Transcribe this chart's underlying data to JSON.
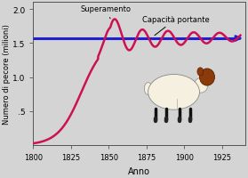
{
  "xlabel": "Anno",
  "ylabel": "Numero di pecore (milioni)",
  "xlim": [
    1800,
    1940
  ],
  "ylim": [
    0,
    2.1
  ],
  "yticks": [
    0.5,
    1.0,
    1.5,
    2.0
  ],
  "ytick_labels": [
    ".5",
    "1.0",
    "1.5",
    "2.0"
  ],
  "xticks": [
    1800,
    1825,
    1850,
    1875,
    1900,
    1925
  ],
  "bg_color": "#d4d4d4",
  "carrying_capacity": 1.57,
  "carrying_color": "#2020cc",
  "population_color": "#cc1155",
  "annotation_superamento": "Superamento",
  "annotation_capacita": "Capacità portante",
  "sheep_body_color": "#f5f0e0",
  "sheep_head_color": "#8B3A0A",
  "sheep_leg_color": "#111111",
  "sheep_outline_color": "#888888"
}
